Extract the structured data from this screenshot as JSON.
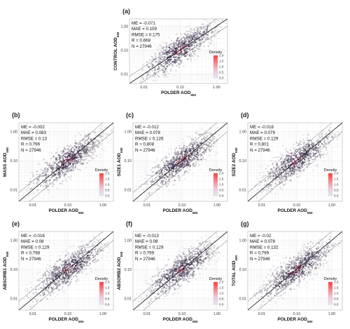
{
  "chart_data": [
    {
      "type": "scatter",
      "letter": "(a)",
      "ylabel": "CONTROL AOD",
      "ylabel_sub": "550",
      "xlabel": "POLDER AOD",
      "xlabel_sub": "550",
      "ticks_x": [
        "0.01",
        "0.10",
        "1.00"
      ],
      "ticks_y": [
        "0.01",
        "0.10",
        "1.00"
      ],
      "xlim": [
        0.004,
        2.0
      ],
      "ylim": [
        0.004,
        2.0
      ],
      "log_scale": true,
      "stats": [
        "ME = -0.071",
        "MAE = 0.109",
        "RMSE = 0.175",
        "R = 0.668",
        "N = 27946"
      ],
      "legend": {
        "title": "Density",
        "ticks": [
          "2.0",
          "1.5",
          "1.0",
          "0.5",
          "0.0"
        ],
        "placement": "bottom-right"
      },
      "cloud": {
        "center": [
          0.1,
          0.1
        ],
        "spread_x": 0.5,
        "spread_y": 0.6
      }
    },
    {
      "type": "scatter",
      "letter": "(b)",
      "ylabel": "MASS AOD",
      "ylabel_sub": "550",
      "xlabel": "POLDER AOD",
      "xlabel_sub": "550",
      "ticks_x": [
        "0.01",
        "0.10",
        "1.00"
      ],
      "ticks_y": [
        "0.01",
        "0.10",
        "1.00"
      ],
      "xlim": [
        0.004,
        2.0
      ],
      "ylim": [
        0.004,
        2.0
      ],
      "log_scale": true,
      "stats": [
        "ME = -0.002",
        "MAE = 0.083",
        "RMSE = 0.13",
        "R = 0.796",
        "N = 27946"
      ],
      "legend": {
        "title": "Density",
        "ticks": [
          "2.0",
          "1.5",
          "1.0",
          "0.5",
          "0.0"
        ],
        "placement": "bottom-right"
      },
      "cloud": {
        "center": [
          0.1,
          0.1
        ],
        "spread_x": 0.5,
        "spread_y": 0.5
      }
    },
    {
      "type": "scatter",
      "letter": "(c)",
      "ylabel": "SIZE1 AOD",
      "ylabel_sub": "550",
      "xlabel": "POLDER AOD",
      "xlabel_sub": "550",
      "ticks_x": [
        "0.01",
        "0.10",
        "1.00"
      ],
      "ticks_y": [
        "0.01",
        "0.10",
        "1.00"
      ],
      "xlim": [
        0.004,
        2.0
      ],
      "ylim": [
        0.004,
        2.0
      ],
      "log_scale": true,
      "stats": [
        "ME = -0.012",
        "MAE = 0.078",
        "RMSE = 0.126",
        "R = 0.808",
        "N = 27946"
      ],
      "legend": {
        "title": "Density",
        "ticks": [
          "2.0",
          "1.5",
          "1.0",
          "0.5",
          "0.0"
        ],
        "placement": "bottom-right"
      },
      "cloud": {
        "center": [
          0.1,
          0.1
        ],
        "spread_x": 0.5,
        "spread_y": 0.5
      }
    },
    {
      "type": "scatter",
      "letter": "(d)",
      "ylabel": "SIZE2 AOD",
      "ylabel_sub": "550",
      "xlabel": "POLDER AOD",
      "xlabel_sub": "550",
      "ticks_x": [
        "0.01",
        "0.10",
        "1.00"
      ],
      "ticks_y": [
        "0.01",
        "0.10",
        "1.00"
      ],
      "xlim": [
        0.004,
        2.0
      ],
      "ylim": [
        0.004,
        2.0
      ],
      "log_scale": true,
      "stats": [
        "ME = -0.018",
        "MAE = 0.079",
        "RMSE = 0.129",
        "R = 0.801",
        "N = 27946"
      ],
      "legend": {
        "title": "Density",
        "ticks": [
          "2.0",
          "1.5",
          "1.0",
          "0.5",
          "0.0"
        ],
        "placement": "bottom-right"
      },
      "cloud": {
        "center": [
          0.1,
          0.1
        ],
        "spread_x": 0.5,
        "spread_y": 0.5
      }
    },
    {
      "type": "scatter",
      "letter": "(e)",
      "ylabel": "ABSORB1 AOD",
      "ylabel_sub": "550",
      "xlabel": "POLDER AOD",
      "xlabel_sub": "550",
      "ticks_x": [
        "0.01",
        "0.10",
        "1.00"
      ],
      "ticks_y": [
        "0.01",
        "0.10",
        "1.00"
      ],
      "xlim": [
        0.004,
        2.0
      ],
      "ylim": [
        0.004,
        2.0
      ],
      "log_scale": true,
      "stats": [
        "ME = -0.016",
        "MAE = 0.08",
        "RMSE = 0.129",
        "R = 0.798",
        "N = 27946"
      ],
      "legend": {
        "title": "Density",
        "ticks": [
          "2.0",
          "1.5",
          "1.0",
          "0.5",
          "0.0"
        ],
        "placement": "bottom-right"
      },
      "cloud": {
        "center": [
          0.1,
          0.1
        ],
        "spread_x": 0.5,
        "spread_y": 0.5
      }
    },
    {
      "type": "scatter",
      "letter": "(f)",
      "ylabel": "ABSORB2 AOD",
      "ylabel_sub": "550",
      "xlabel": "POLDER AOD",
      "xlabel_sub": "550",
      "ticks_x": [
        "0.01",
        "0.10",
        "1.00"
      ],
      "ticks_y": [
        "0.01",
        "0.10",
        "1.00"
      ],
      "xlim": [
        0.004,
        2.0
      ],
      "ylim": [
        0.004,
        2.0
      ],
      "log_scale": true,
      "stats": [
        "ME = -0.013",
        "MAE = 0.08",
        "RMSE = 0.129",
        "R = 0.799",
        "N = 27946"
      ],
      "legend": {
        "title": "Density",
        "ticks": [
          "2.0",
          "1.5",
          "1.0",
          "0.5",
          "0.0"
        ],
        "placement": "bottom-right"
      },
      "cloud": {
        "center": [
          0.1,
          0.1
        ],
        "spread_x": 0.5,
        "spread_y": 0.5
      }
    },
    {
      "type": "scatter",
      "letter": "(g)",
      "ylabel": "TOTAL AOD",
      "ylabel_sub": "550",
      "xlabel": "POLDER AOD",
      "xlabel_sub": "550",
      "ticks_x": [
        "0.01",
        "0.10",
        "1.00"
      ],
      "ticks_y": [
        "0.01",
        "0.10",
        "1.00"
      ],
      "xlim": [
        0.004,
        2.0
      ],
      "ylim": [
        0.004,
        2.0
      ],
      "log_scale": true,
      "stats": [
        "ME = -0.02",
        "MAE = 0.078",
        "RMSE = 0.132",
        "R = 0.799",
        "N = 27946"
      ],
      "legend": {
        "title": "Density",
        "ticks": [
          "2.0",
          "1.5",
          "1.0",
          "0.5",
          "0.0"
        ],
        "placement": "bottom-right"
      },
      "cloud": {
        "center": [
          0.1,
          0.1
        ],
        "spread_x": 0.5,
        "spread_y": 0.5
      }
    }
  ],
  "colors": {
    "density_low": "#e6e6f5",
    "density_high": "#ff3b3b",
    "cloud": "#2a1a3a",
    "grid": "#e6e6e6",
    "panel_border": "#b0b0b0",
    "reference_line": "#111111"
  }
}
